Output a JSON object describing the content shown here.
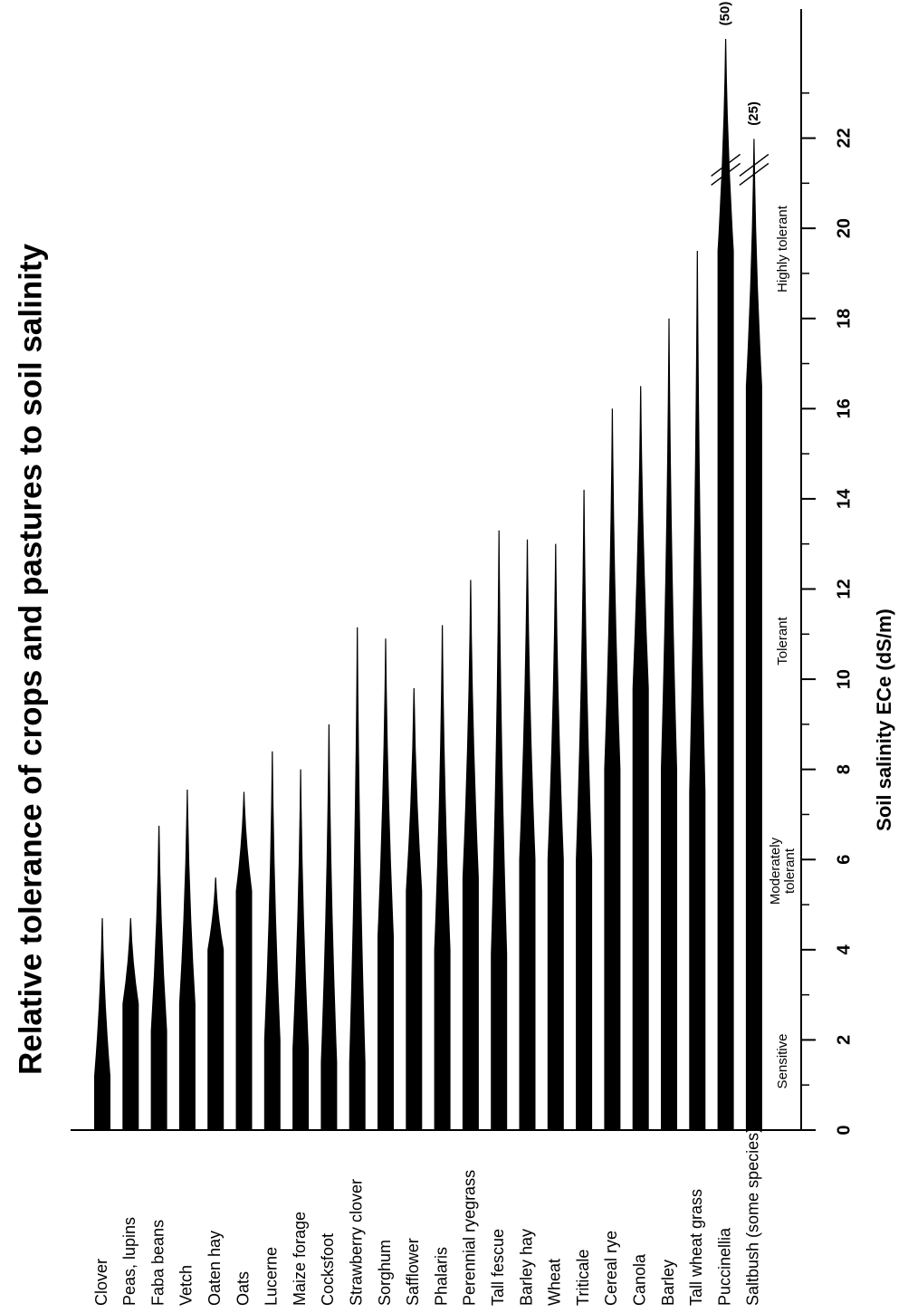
{
  "chart_data": {
    "type": "bar",
    "title": "Relative tolerance of crops and pastures to soil salinity",
    "y_label": "Soil salinity ECe (dS/m)",
    "categories": [
      "Clover",
      "Peas, lupins",
      "Faba beans",
      "Vetch",
      "Oaten hay",
      "Oats",
      "Lucerne",
      "Maize forage",
      "Cocksfoot",
      "Strawberry clover",
      "Sorghum",
      "Safflower",
      "Phalaris",
      "Perennial ryegrass",
      "Tall fescue",
      "Barley hay",
      "Wheat",
      "Triticale",
      "Cereal rye",
      "Canola",
      "Barley",
      "Tall wheat grass",
      "Puccinellia",
      "Saltbush (some species)"
    ],
    "values": [
      4.7,
      4.7,
      6.75,
      7.55,
      5.6,
      7.5,
      8.4,
      8.0,
      9.0,
      11.15,
      10.9,
      9.8,
      11.2,
      12.2,
      13.3,
      13.1,
      13.0,
      14.2,
      16.0,
      16.5,
      18.0,
      19.5,
      50,
      25
    ],
    "value_labels": [
      null,
      null,
      null,
      null,
      null,
      null,
      null,
      null,
      null,
      null,
      null,
      null,
      null,
      null,
      null,
      null,
      null,
      null,
      null,
      null,
      null,
      null,
      "(50)",
      "(25)"
    ],
    "thresholds": [
      1.2,
      2.8,
      2.2,
      2.8,
      4.0,
      5.3,
      2.0,
      1.8,
      1.5,
      1.5,
      4.3,
      5.3,
      4.0,
      5.6,
      3.9,
      6.0,
      6.0,
      6.0,
      8.0,
      9.8,
      8.0,
      7.5,
      19.5,
      16.5
    ],
    "color": "#000000",
    "ylim": [
      0,
      24.2
    ],
    "yticks": [
      0,
      2,
      4,
      6,
      8,
      10,
      12,
      14,
      16,
      18,
      20,
      22
    ],
    "yminor_ticks": [
      1,
      3,
      5,
      7,
      9,
      11,
      13,
      15,
      17,
      19,
      21,
      23
    ],
    "axis_break": 21.5,
    "zones": [
      "Sensitive",
      "Moderately tolerant",
      "Tolerant",
      "Highly tolerant"
    ]
  }
}
